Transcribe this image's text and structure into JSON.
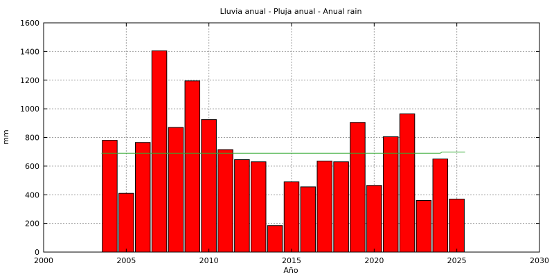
{
  "chart_data": {
    "type": "bar",
    "title": "Lluvia anual - Pluja anual - Anual rain",
    "xlabel": "Año",
    "ylabel": "mm",
    "xlim": [
      2000,
      2030
    ],
    "ylim": [
      0,
      1600
    ],
    "xticks": [
      2000,
      2005,
      2010,
      2015,
      2020,
      2025,
      2030
    ],
    "yticks": [
      0,
      200,
      400,
      600,
      800,
      1000,
      1200,
      1400,
      1600
    ],
    "grid": true,
    "bar_color": "#ff0000",
    "line_color": "#33aa33",
    "series": [
      {
        "type": "bar",
        "x": [
          2004,
          2005,
          2006,
          2007,
          2008,
          2009,
          2010,
          2011,
          2012,
          2013,
          2014,
          2015,
          2016,
          2017,
          2018,
          2019,
          2020,
          2021,
          2022,
          2023,
          2024,
          2025
        ],
        "values": [
          780,
          410,
          765,
          1405,
          870,
          1195,
          925,
          715,
          645,
          630,
          185,
          490,
          455,
          635,
          630,
          905,
          465,
          805,
          965,
          360,
          650,
          370
        ]
      },
      {
        "type": "line",
        "x": [
          2003.5,
          2024,
          2024.1,
          2025.5
        ],
        "values": [
          690,
          690,
          698,
          698
        ]
      }
    ]
  }
}
